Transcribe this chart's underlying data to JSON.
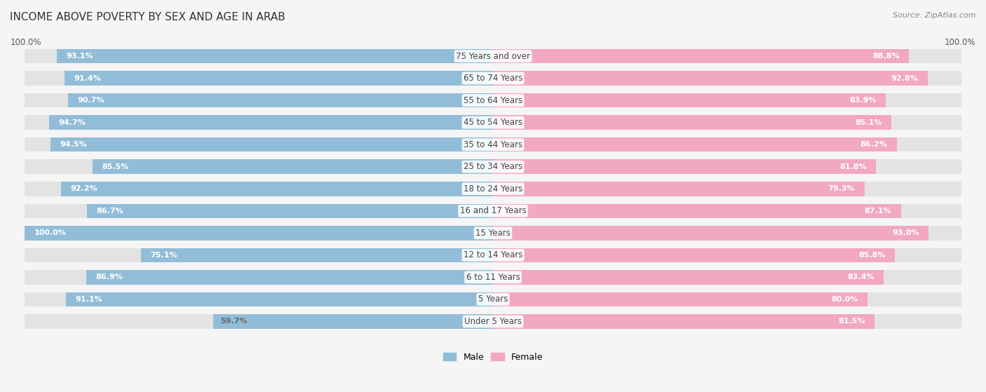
{
  "title": "INCOME ABOVE POVERTY BY SEX AND AGE IN ARAB",
  "source": "Source: ZipAtlas.com",
  "categories": [
    "Under 5 Years",
    "5 Years",
    "6 to 11 Years",
    "12 to 14 Years",
    "15 Years",
    "16 and 17 Years",
    "18 to 24 Years",
    "25 to 34 Years",
    "35 to 44 Years",
    "45 to 54 Years",
    "55 to 64 Years",
    "65 to 74 Years",
    "75 Years and over"
  ],
  "male_values": [
    59.7,
    91.1,
    86.9,
    75.1,
    100.0,
    86.7,
    92.2,
    85.5,
    94.5,
    94.7,
    90.7,
    91.4,
    93.1
  ],
  "female_values": [
    81.5,
    80.0,
    83.4,
    85.8,
    93.0,
    87.1,
    79.3,
    81.8,
    86.2,
    85.1,
    83.9,
    92.8,
    88.8
  ],
  "male_color": "#92bdd8",
  "female_color": "#f2a8be",
  "background_color": "#f5f5f5",
  "bar_background": "#e3e3e3",
  "title_fontsize": 11,
  "label_fontsize": 8.5,
  "value_fontsize": 8,
  "max_value": 100.0,
  "legend_male": "Male",
  "legend_female": "Female"
}
